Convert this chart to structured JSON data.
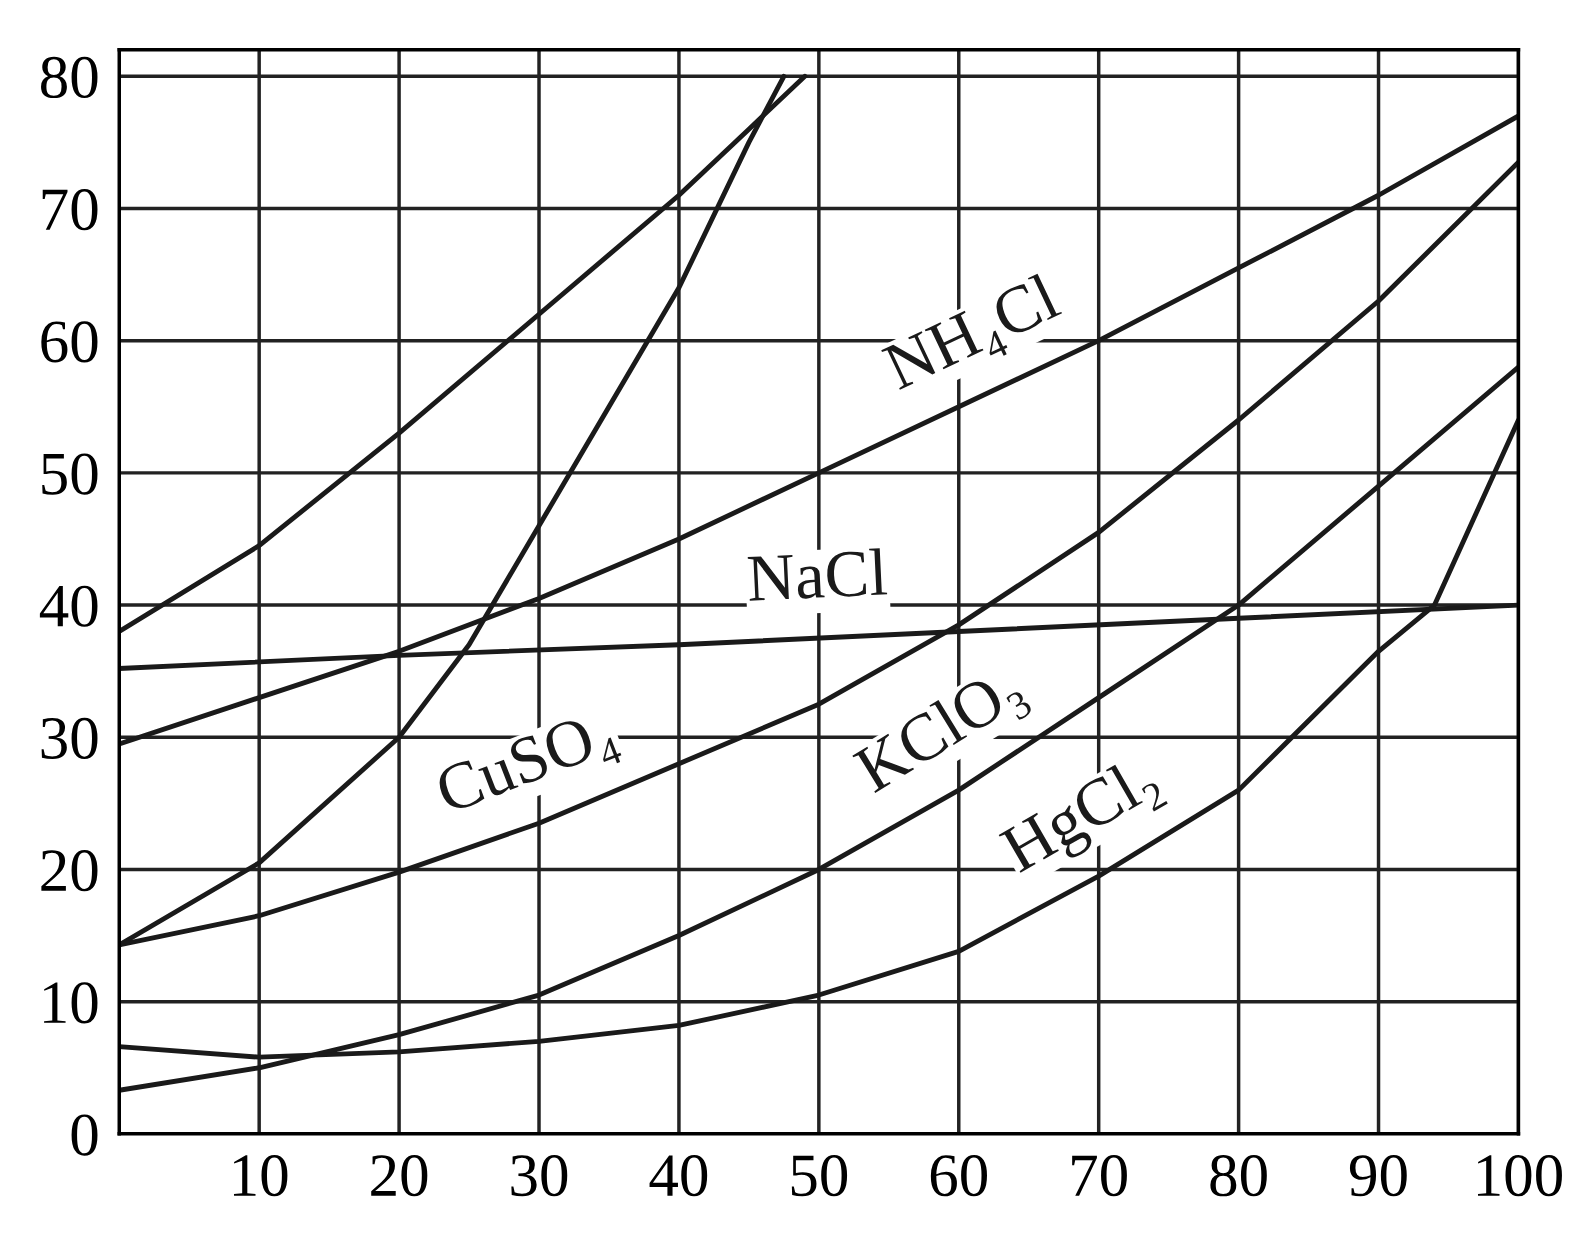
{
  "chart_data": {
    "type": "line",
    "xlim": [
      0,
      100
    ],
    "ylim": [
      0,
      82
    ],
    "xticks": [
      {
        "value": 0,
        "label": null
      },
      10,
      20,
      30,
      40,
      50,
      60,
      70,
      80,
      90,
      100
    ],
    "yticks": [
      0,
      10,
      20,
      30,
      40,
      50,
      60,
      70,
      80
    ],
    "grid": true,
    "marker": "none",
    "line_style": "solid",
    "legend": false,
    "series": [
      {
        "color": "#1a1a1a",
        "x": [
          0,
          10,
          20,
          30,
          40,
          45,
          49
        ],
        "values": [
          38,
          44.5,
          53,
          62,
          71,
          76,
          80
        ]
      },
      {
        "color": "#1a1a1a",
        "x": [
          0,
          10,
          20,
          25,
          30,
          35,
          40,
          45,
          47.5
        ],
        "values": [
          14.3,
          20.5,
          30,
          37,
          46,
          55,
          64,
          75,
          80
        ]
      },
      {
        "name": "NH₄Cl",
        "color": "#1a1a1a",
        "x": [
          0,
          10,
          20,
          30,
          40,
          50,
          60,
          70,
          80,
          90,
          100
        ],
        "values": [
          29.5,
          33,
          36.5,
          40.5,
          45,
          50,
          55,
          60,
          65.5,
          71,
          77
        ]
      },
      {
        "name": "NaCl",
        "color": "#1a1a1a",
        "x": [
          0,
          20,
          40,
          60,
          80,
          100
        ],
        "values": [
          35.2,
          36.2,
          37,
          38,
          39,
          40
        ]
      },
      {
        "name": "CuSO₄",
        "color": "#1a1a1a",
        "x": [
          0,
          10,
          20,
          30,
          40,
          50,
          60,
          70,
          80,
          90,
          100
        ],
        "values": [
          14.3,
          16.5,
          19.8,
          23.5,
          28,
          32.5,
          38.5,
          45.5,
          54,
          63,
          73.5
        ]
      },
      {
        "name": "KClO₃",
        "color": "#1a1a1a",
        "x": [
          0,
          10,
          20,
          30,
          40,
          50,
          60,
          70,
          80,
          90,
          100
        ],
        "values": [
          3.3,
          5,
          7.5,
          10.5,
          15,
          20,
          26,
          33,
          40,
          49,
          58
        ]
      },
      {
        "name": "HgCl₂",
        "color": "#1a1a1a",
        "x": [
          0,
          10,
          20,
          30,
          40,
          50,
          60,
          70,
          80,
          90,
          94,
          100
        ],
        "values": [
          6.6,
          5.8,
          6.2,
          7,
          8.2,
          10.5,
          13.8,
          19.5,
          26,
          36.5,
          40,
          54
        ]
      }
    ]
  }
}
